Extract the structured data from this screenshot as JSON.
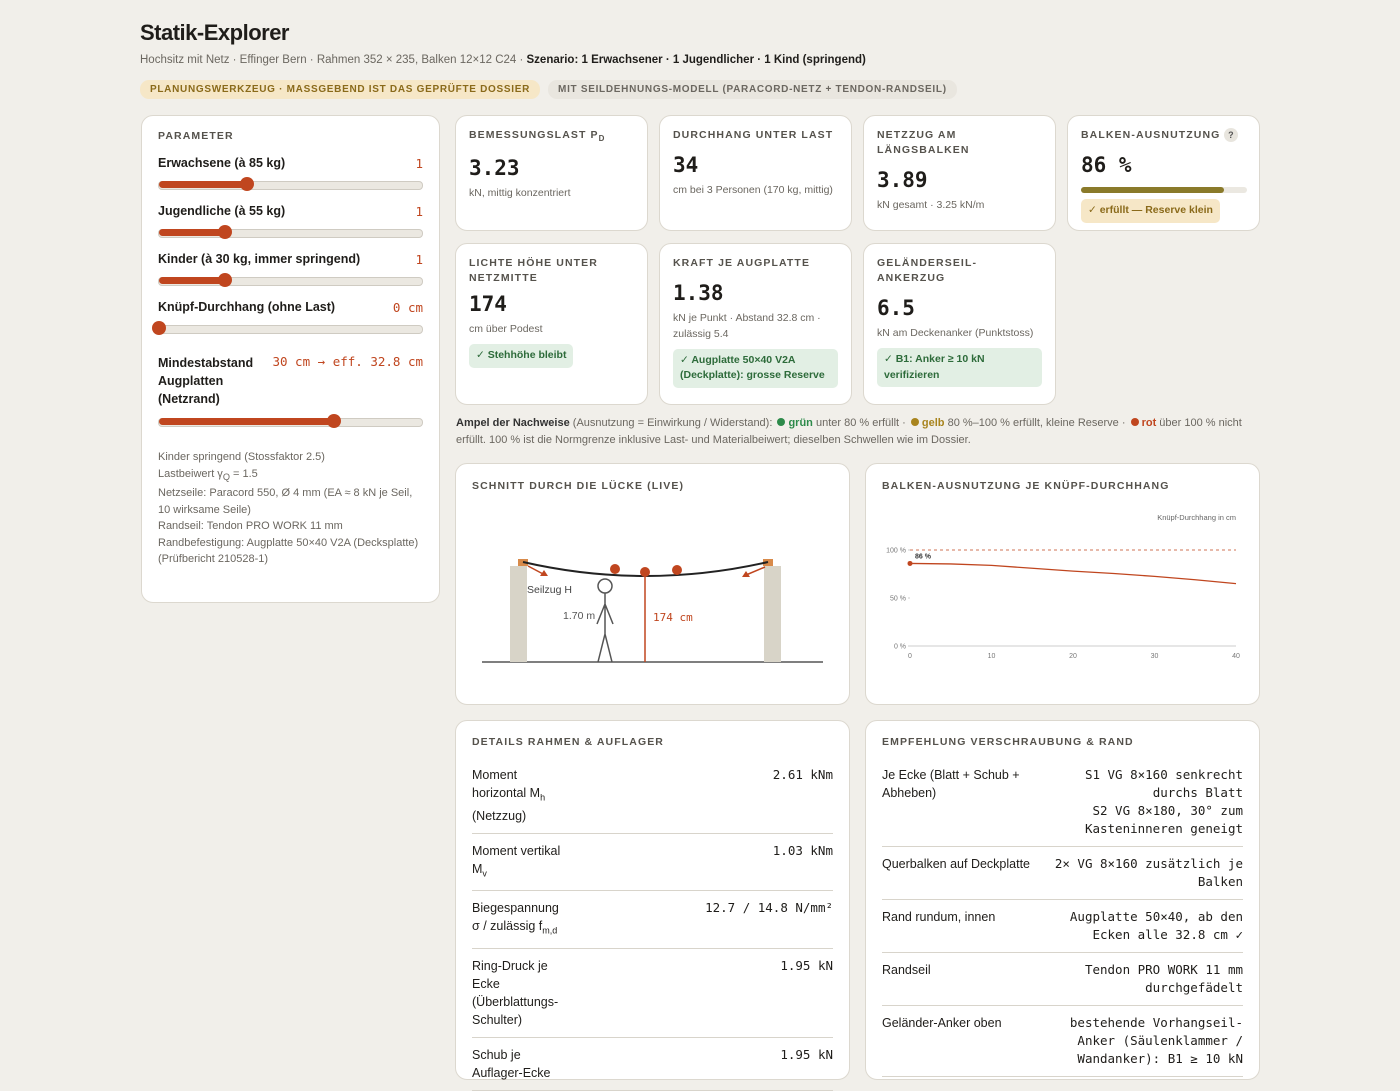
{
  "header": {
    "title": "Statik-Explorer",
    "subtitle": "Hochsitz mit Netz · Effinger Bern · Rahmen 352 × 235, Balken 12×12 C24 · ",
    "scenario": "Szenario: 1 Erwachsener · 1 Jugendlicher · 1 Kind (springend)",
    "badges": [
      "PLANUNGSWERKZEUG · MASSGEBEND IST DAS GEPRÜFTE DOSSIER",
      "MIT SEILDEHNUNGS-MODELL (PARACORD-NETZ + TENDON-RANDSEIL)"
    ]
  },
  "parameters": {
    "heading": "PARAMETER",
    "sliders": [
      {
        "label": "Erwachsene (à 85 kg)",
        "value_text": "1",
        "value": 1,
        "range": [
          0,
          3
        ]
      },
      {
        "label": "Jugendliche (à 55 kg)",
        "value_text": "1",
        "value": 1,
        "range": [
          0,
          4
        ]
      },
      {
        "label": "Kinder (à 30 kg, immer springend)",
        "value_text": "1",
        "value": 1,
        "range": [
          0,
          4
        ]
      },
      {
        "label": "Knüpf-Durchhang (ohne Last)",
        "value_text": "0 cm",
        "value": 0,
        "range": [
          0,
          40
        ]
      },
      {
        "label": "Mindestabstand Augplatten (Netzrand)",
        "value_text": "30 cm → eff. 32.8 cm",
        "value": 30,
        "range": [
          10,
          40
        ]
      }
    ],
    "notes": {
      "children": "Kinder springend (Stossfaktor 2.5)",
      "load_factor": "Lastbeiwert γ",
      "load_factor_sub": "Q",
      "load_factor_value": " = 1.5",
      "lines": [
        "Netzseile: Paracord 550, Ø 4 mm (EA ≈ 8 kN je Seil, 10 wirksame Seile)",
        "Randseil: Tendon PRO WORK 11 mm",
        "Randbefestigung: Augplatte 50×40 V2A (Decksplatte) (Prüfbericht 210528-1)"
      ]
    }
  },
  "kpis": [
    {
      "label": "BEMESSUNGSLAST P",
      "label_sub": "D",
      "value": "3.23",
      "unit": "kN, mittig konzentriert"
    },
    {
      "label": "DURCHHANG UNTER LAST",
      "value": "34",
      "unit": "cm bei 3 Personen (170 kg, mittig)"
    },
    {
      "label": "NETZZUG AM LÄNGSBALKEN",
      "value": "3.89",
      "unit": "kN gesamt · 3.25 kN/m"
    },
    {
      "label": "BALKEN-AUSNUTZUNG",
      "help": "?",
      "value": "86 %",
      "bar_value": 86,
      "bar_range": [
        0,
        100
      ],
      "badge": "✓ erfüllt — Reserve klein",
      "badge_style": "yellow"
    },
    {
      "label": "LICHTE HÖHE UNTER NETZMITTE",
      "value": "174",
      "unit": "cm über Podest",
      "badge": "✓ Stehhöhe bleibt",
      "badge_style": "green"
    },
    {
      "label": "KRAFT JE AUGPLATTE",
      "value": "1.38",
      "unit": "kN je Punkt · Abstand 32.8 cm · zulässig 5.4",
      "badge": "✓ Augplatte 50×40 V2A (Deckplatte): grosse Reserve",
      "badge_style": "green"
    },
    {
      "label": "GELÄNDERSEIL-ANKERZUG",
      "value": "6.5",
      "unit": "kN am Deckenanker (Punktstoss)",
      "badge": "✓ B1: Anker ≥ 10 kN verifizieren",
      "badge_style": "green"
    }
  ],
  "legend": [
    {
      "text": "Ampel der Nachweise",
      "style": "bold"
    },
    {
      "text": " (Ausnutzung = Einwirkung / Widerstand): "
    },
    {
      "text": "grün",
      "style": "green"
    },
    {
      "text": " unter 80 % erfüllt · "
    },
    {
      "text": "gelb",
      "style": "yellow"
    },
    {
      "text": " 80 %–100 % erfüllt, kleine Reserve · "
    },
    {
      "text": "rot",
      "style": "red"
    },
    {
      "text": " über 100 % nicht erfüllt. 100 % ist die Normgrenze inklusive Last- und Materialbeiwert; dieselben Schwellen wie im Dossier."
    }
  ],
  "section": {
    "title": "SCHNITT DURCH DIE LÜCKE (LIVE)",
    "rope_label": "Seilzug H",
    "person_label": "1.70 m",
    "clearance_label": "174 cm"
  },
  "line_chart": {
    "type": "line",
    "title": "BALKEN-AUSNUTZUNG JE KNÜPF-DURCHHANG",
    "x_label": "Knüpf-Durchhang in cm",
    "x": [
      0,
      5,
      10,
      15,
      20,
      25,
      30,
      35,
      40
    ],
    "values": [
      86,
      85.5,
      84,
      81,
      78,
      75.5,
      72.5,
      69,
      65
    ],
    "color": "#c0461f",
    "current_label": "86 %",
    "threshold": 100,
    "xlim": [
      0,
      40
    ],
    "ylim": [
      0,
      100
    ],
    "xticks": [
      0,
      10,
      20,
      30,
      40
    ],
    "yticks": [
      {
        "value": 0,
        "label": "0 %"
      },
      {
        "value": 50,
        "label": "50 %"
      },
      {
        "value": 100,
        "label": "100 %"
      }
    ]
  },
  "details": {
    "title": "DETAILS RAHMEN & AUFLAGER",
    "rows": [
      {
        "label": "Moment horizontal M",
        "sub": "h",
        "after": " (Netzzug)",
        "value": "2.61 kNm"
      },
      {
        "label": "Moment vertikal M",
        "sub": "v",
        "value": "1.03 kNm"
      },
      {
        "label": "Biegespannung σ / zulässig f",
        "sub": "m,d",
        "value": "12.7 / 14.8 N/mm²"
      },
      {
        "label": "Ring-Druck je Ecke (Überblattungs-Schulter)",
        "value": "1.95 kN"
      },
      {
        "label": "Schub je Auflager-Ecke",
        "value": "1.95 kN"
      }
    ]
  },
  "recommendation": {
    "title": "EMPFEHLUNG VERSCHRAUBUNG & RAND",
    "rows": [
      {
        "label": "Je Ecke (Blatt + Schub + Abheben)",
        "value": [
          "S1 VG 8×160 senkrecht durchs Blatt",
          "S2 VG 8×180, 30° zum Kasteninneren geneigt"
        ]
      },
      {
        "label": "Querbalken auf Deckplatte",
        "value": [
          "2× VG 8×160 zusätzlich je Balken"
        ]
      },
      {
        "label": "Rand rundum, innen",
        "value": [
          "Augplatte 50×40, ab den Ecken alle 32.8 cm ✓"
        ]
      },
      {
        "label": "Randseil",
        "value": [
          "Tendon PRO WORK 11 mm durchgefädelt"
        ]
      },
      {
        "label": "Geländer-Anker oben",
        "value": [
          "bestehende Vorhangseil-Anker (Säulenklammer / Wandanker): B1 ≥ 10 kN"
        ]
      }
    ]
  }
}
